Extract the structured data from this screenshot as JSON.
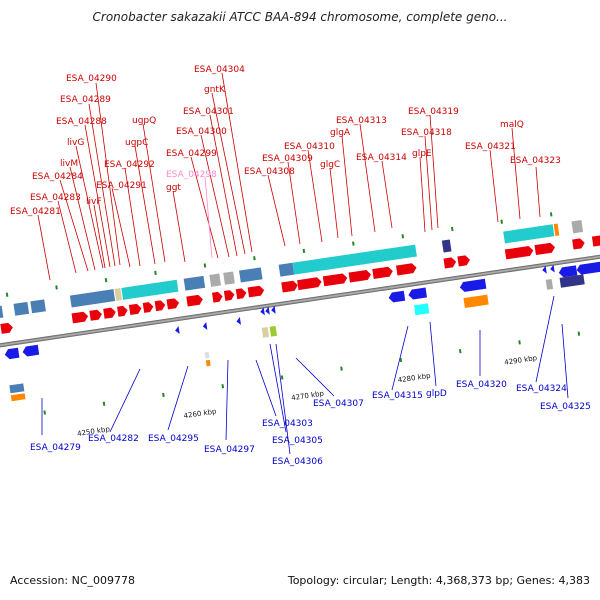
{
  "title": "Cronobacter sakazakii ATCC BAA-894 chromosome, complete geno...",
  "footer": {
    "accession": "Accession: NC_009778",
    "summary": "Topology: circular; Length: 4,368,373 bp; Genes: 4,383"
  },
  "colors": {
    "forward_gene": "#e8000b",
    "reverse_gene": "#1a1ae6",
    "forward_label": "#cc0000",
    "reverse_label": "#0000cc",
    "highlight_label": "#ff88cc",
    "backbone": "#777777",
    "cog_steelblue": "#4a7fb5",
    "cog_cyan": "#22cccc",
    "cog_grey": "#aaaaaa",
    "cog_orange": "#ff8800",
    "cog_purple": "#333388",
    "cog_green": "#99cc33"
  },
  "tick_labels": [
    "4250 kbp",
    "4260 kbp",
    "4270 kbp",
    "4280 kbp",
    "4290 kbp"
  ],
  "forward_labels": [
    "ESA_04290",
    "ESA_04289",
    "ESA_04288",
    "livG",
    "livM",
    "ESA_04284",
    "ESA_04283",
    "livF",
    "ESA_04281",
    "ugpQ",
    "ugpC",
    "ESA_04292",
    "ESA_04291",
    "ESA_04304",
    "gntK",
    "ESA_04301",
    "ESA_04300",
    "ESA_04299",
    "ESA_04298",
    "ggt",
    "ESA_04308",
    "ESA_04309",
    "ESA_04310",
    "glgA",
    "glgC",
    "ESA_04313",
    "ESA_04314",
    "ESA_04319",
    "ESA_04318",
    "glpE",
    "ESA_04321",
    "malQ",
    "ESA_04323"
  ],
  "reverse_labels": [
    "ESA_04279",
    "ESA_04282",
    "ESA_04295",
    "ESA_04297",
    "ESA_04303",
    "ESA_04305",
    "ESA_04306",
    "ESA_04307",
    "ESA_04315",
    "glpD",
    "ESA_04320",
    "ESA_04324",
    "ESA_04325"
  ]
}
